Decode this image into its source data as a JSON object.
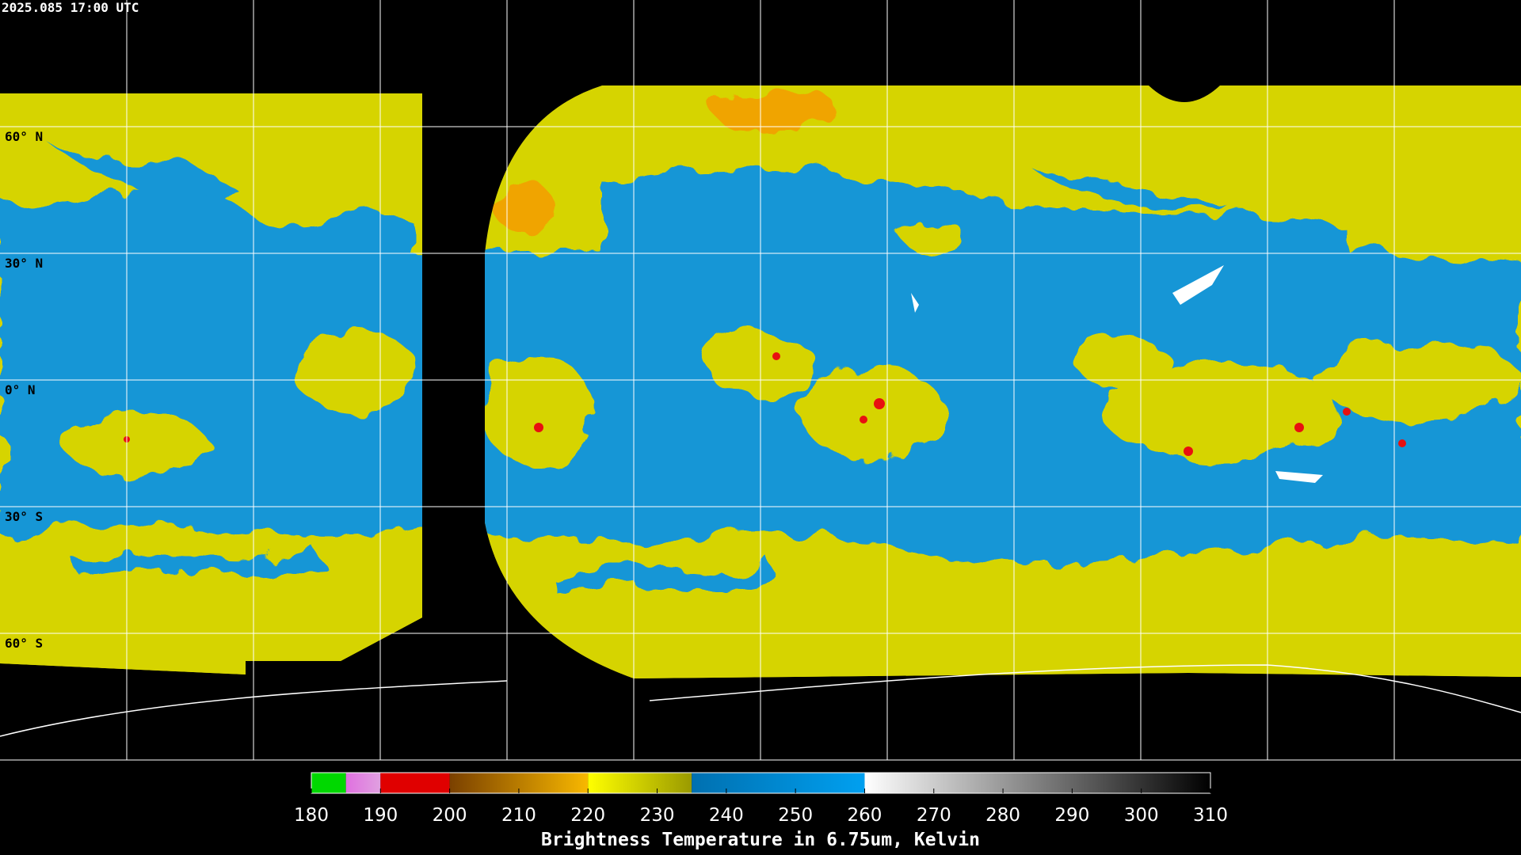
{
  "timestamp": "2025.085 17:00 UTC",
  "lat_labels": [
    "60° N",
    "30° N",
    "0° N",
    "30° S",
    "60° S"
  ],
  "colorbar": {
    "title": "Brightness Temperature in 6.75um, Kelvin",
    "lim": [
      180,
      310
    ],
    "ticks": [
      180,
      190,
      200,
      210,
      220,
      230,
      240,
      250,
      260,
      270,
      280,
      290,
      300,
      310
    ],
    "segments": [
      {
        "range": [
          180,
          185
        ],
        "colors": [
          "#00d800",
          "#00d800"
        ]
      },
      {
        "range": [
          185,
          190
        ],
        "colors": [
          "#e070e0",
          "#e0a0e0"
        ]
      },
      {
        "range": [
          190,
          200
        ],
        "colors": [
          "#e00000",
          "#e00000"
        ]
      },
      {
        "range": [
          200,
          220
        ],
        "colors": [
          "#7a4000",
          "#f8b800"
        ]
      },
      {
        "range": [
          220,
          235
        ],
        "colors": [
          "#ffff00",
          "#9a9a00"
        ]
      },
      {
        "range": [
          235,
          260
        ],
        "colors": [
          "#0070b0",
          "#00a0f0"
        ]
      },
      {
        "range": [
          260,
          310
        ],
        "colors": [
          "#ffffff",
          "#000000"
        ]
      }
    ]
  }
}
